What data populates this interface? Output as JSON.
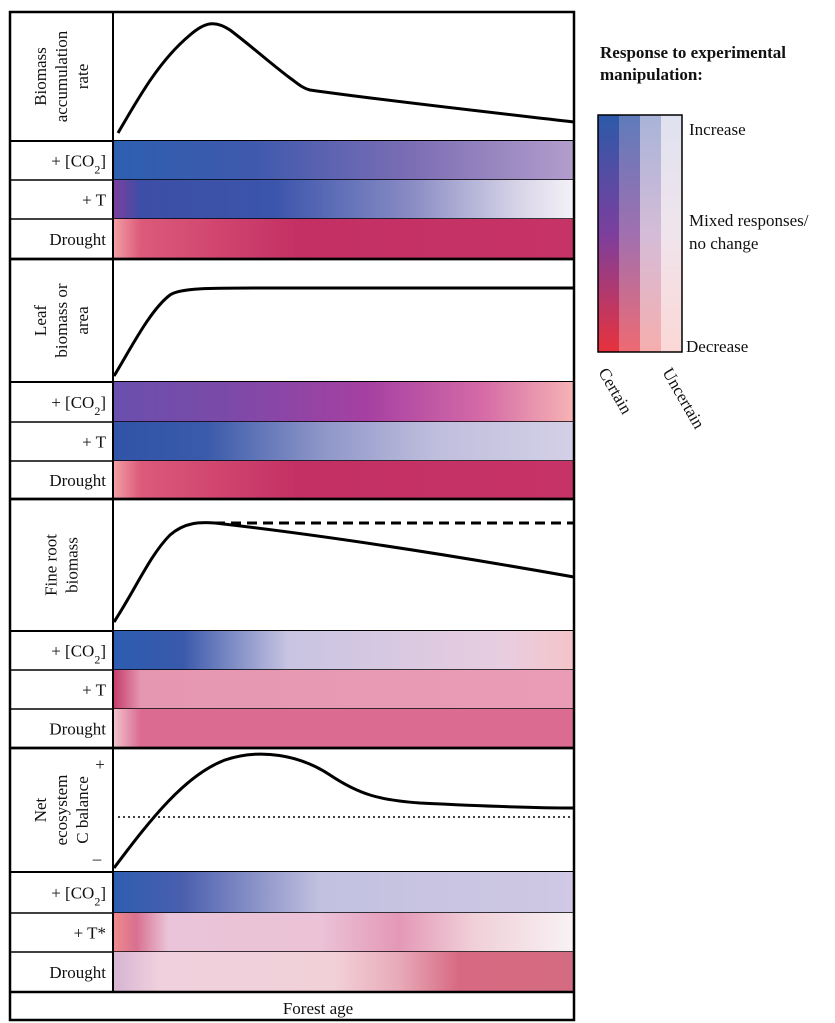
{
  "x_axis_label": "Forest age",
  "legend": {
    "title_line1": "Response to experimental",
    "title_line2": "manipulation:",
    "increase": "Increase",
    "mixed_line1": "Mixed responses/",
    "mixed_line2": "no change",
    "decrease": "Decrease",
    "certain": "Certain",
    "uncertain": "Uncertain"
  },
  "panels": [
    {
      "label_lines": [
        "Biomass",
        "accumulation",
        "rate"
      ],
      "rows": [
        {
          "label": "+ [CO2]",
          "stops": [
            [
              0,
              "#2d5fb0"
            ],
            [
              0.3,
              "#3f59ad"
            ],
            [
              0.65,
              "#7c6eb4"
            ],
            [
              1,
              "#b39dcc"
            ]
          ]
        },
        {
          "label": "+ T",
          "stops": [
            [
              0,
              "#7c3f9e"
            ],
            [
              0.06,
              "#3d4ea6"
            ],
            [
              0.35,
              "#3b55ac"
            ],
            [
              0.65,
              "#8a8cc4"
            ],
            [
              0.88,
              "#d8d4e8"
            ],
            [
              1,
              "#f4f2f8"
            ]
          ]
        },
        {
          "label": "Drought",
          "stops": [
            [
              0,
              "#f3a0a4"
            ],
            [
              0.06,
              "#dc5a7a"
            ],
            [
              0.4,
              "#c43064"
            ],
            [
              1,
              "#c63366"
            ]
          ]
        }
      ]
    },
    {
      "label_lines": [
        "Leaf",
        "biomass or",
        "area"
      ],
      "rows": [
        {
          "label": "+ [CO2]",
          "stops": [
            [
              0,
              "#6a4fae"
            ],
            [
              0.25,
              "#7b4aa8"
            ],
            [
              0.55,
              "#a540a2"
            ],
            [
              0.8,
              "#d56aa6"
            ],
            [
              1,
              "#f6b4b4"
            ]
          ]
        },
        {
          "label": "+ T",
          "stops": [
            [
              0,
              "#3154a8"
            ],
            [
              0.2,
              "#3a5aaa"
            ],
            [
              0.45,
              "#8d95c8"
            ],
            [
              0.7,
              "#c0bedd"
            ],
            [
              1,
              "#d3d0e6"
            ]
          ]
        },
        {
          "label": "Drought",
          "stops": [
            [
              0,
              "#f3a0a4"
            ],
            [
              0.06,
              "#dc5a7a"
            ],
            [
              0.4,
              "#c43064"
            ],
            [
              1,
              "#c63366"
            ]
          ]
        }
      ]
    },
    {
      "label_lines": [
        "Fine root",
        "biomass"
      ],
      "rows": [
        {
          "label": "+ [CO2]",
          "stops": [
            [
              0,
              "#2c5cb0"
            ],
            [
              0.15,
              "#3a59ab"
            ],
            [
              0.38,
              "#c8c4e2"
            ],
            [
              0.85,
              "#e8cde0"
            ],
            [
              1,
              "#f4c4c8"
            ]
          ]
        },
        {
          "label": "+ T",
          "stops": [
            [
              0,
              "#c43a6a"
            ],
            [
              0.06,
              "#e596b0"
            ],
            [
              1,
              "#ea9cb6"
            ]
          ]
        },
        {
          "label": "Drought",
          "stops": [
            [
              0,
              "#f1c4cc"
            ],
            [
              0.06,
              "#dc6b92"
            ],
            [
              1,
              "#dc6b92"
            ]
          ]
        }
      ]
    },
    {
      "label_lines": [
        "Net",
        "ecosystem",
        "C balance"
      ],
      "plus": "+",
      "minus": "–",
      "rows": [
        {
          "label": "+ [CO2]",
          "stops": [
            [
              0,
              "#2e5db0"
            ],
            [
              0.15,
              "#4a5fae"
            ],
            [
              0.45,
              "#c2c1e0"
            ],
            [
              1,
              "#d0c8e4"
            ]
          ]
        },
        {
          "label": "+ T*",
          "stops": [
            [
              0,
              "#f08b8b"
            ],
            [
              0.05,
              "#d87090"
            ],
            [
              0.12,
              "#eac4d8"
            ],
            [
              0.45,
              "#ebc2d6"
            ],
            [
              0.62,
              "#e498b6"
            ],
            [
              0.78,
              "#f0cfd8"
            ],
            [
              1,
              "#f8f2f4"
            ]
          ]
        },
        {
          "label": "Drought",
          "stops": [
            [
              0,
              "#d6b4d4"
            ],
            [
              0.1,
              "#efd0dc"
            ],
            [
              0.48,
              "#f1d0d8"
            ],
            [
              0.62,
              "#e8aab8"
            ],
            [
              0.75,
              "#d76a82"
            ],
            [
              1,
              "#d46b80"
            ]
          ]
        }
      ]
    }
  ],
  "legend_columns": [
    {
      "name": "certain",
      "stops": [
        [
          0,
          "#2c5aa8"
        ],
        [
          0.5,
          "#7c3f9e"
        ],
        [
          1,
          "#e8323c"
        ]
      ]
    },
    {
      "name": "mid",
      "stops": [
        [
          0,
          "#5f7bbb"
        ],
        [
          0.5,
          "#a070b0"
        ],
        [
          1,
          "#ee6a72"
        ]
      ]
    },
    {
      "name": "uncertain1",
      "stops": [
        [
          0,
          "#a8b4d8"
        ],
        [
          0.5,
          "#d4bcd8"
        ],
        [
          1,
          "#f6aeae"
        ]
      ]
    },
    {
      "name": "uncertain2",
      "stops": [
        [
          0,
          "#dfe2f0"
        ],
        [
          0.5,
          "#f0e4ec"
        ],
        [
          1,
          "#fbd8d6"
        ]
      ]
    }
  ]
}
